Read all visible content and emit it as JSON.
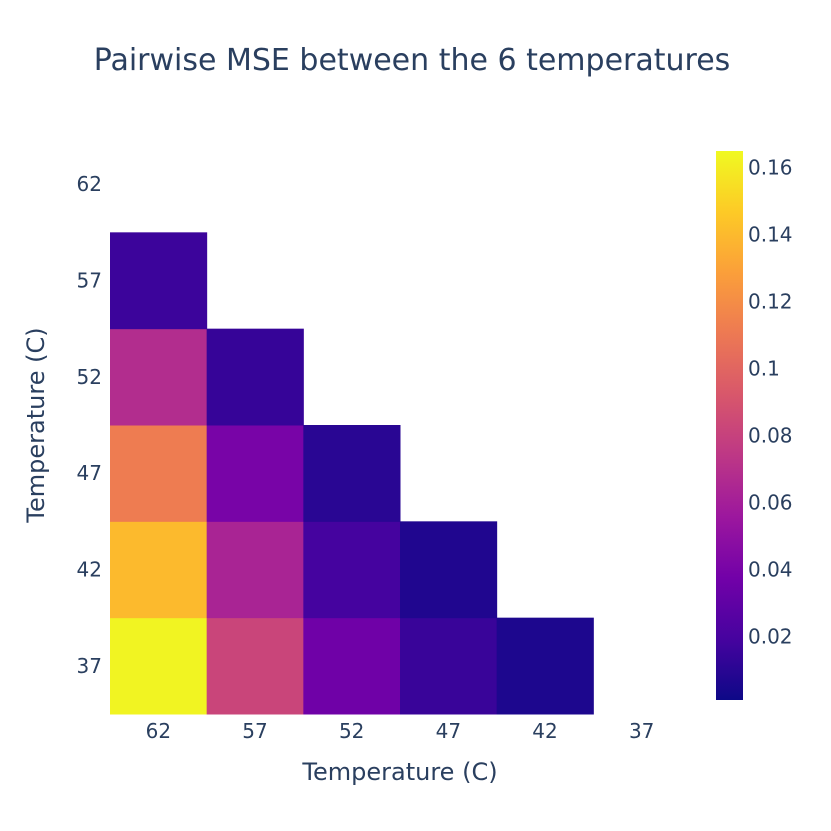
{
  "chart_data": {
    "type": "heatmap",
    "title": "Pairwise MSE between the 6 temperatures",
    "xlabel": "Temperature (C)",
    "ylabel": "Temperature (C)",
    "x_categories": [
      "62",
      "57",
      "52",
      "47",
      "42",
      "37"
    ],
    "y_categories": [
      "37",
      "42",
      "47",
      "52",
      "57",
      "62"
    ],
    "z": [
      [
        0.163,
        0.082,
        0.036,
        0.015,
        0.006,
        null
      ],
      [
        0.14,
        0.063,
        0.019,
        0.007,
        null,
        null
      ],
      [
        0.112,
        0.04,
        0.01,
        null,
        null,
        null
      ],
      [
        0.068,
        0.014,
        null,
        null,
        null,
        null
      ],
      [
        0.016,
        null,
        null,
        null,
        null,
        null
      ],
      [
        null,
        null,
        null,
        null,
        null,
        null
      ]
    ],
    "colorscale": "Plasma",
    "zmin": 0.001,
    "zmax": 0.165,
    "colorbar_ticks": [
      {
        "value": 0.16,
        "label": "0.16"
      },
      {
        "value": 0.14,
        "label": "0.14"
      },
      {
        "value": 0.12,
        "label": "0.12"
      },
      {
        "value": 0.1,
        "label": "0.1"
      },
      {
        "value": 0.08,
        "label": "0.08"
      },
      {
        "value": 0.06,
        "label": "0.06"
      },
      {
        "value": 0.04,
        "label": "0.04"
      },
      {
        "value": 0.02,
        "label": "0.02"
      }
    ]
  }
}
